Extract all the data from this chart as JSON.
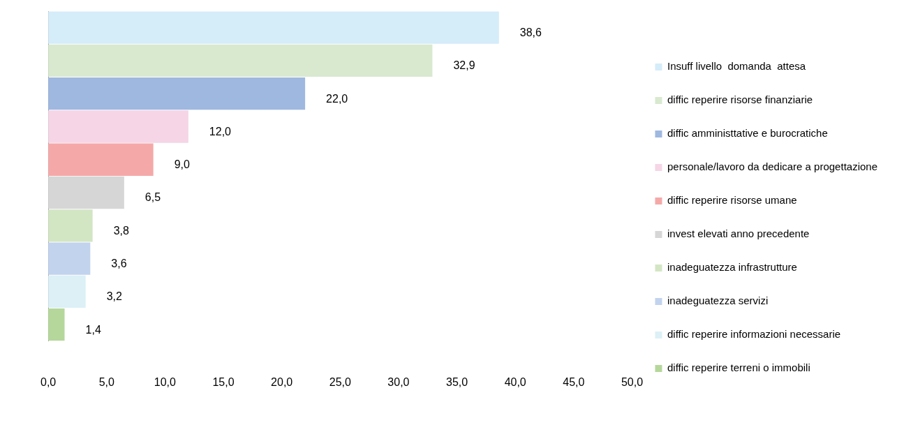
{
  "chart_data": {
    "type": "bar",
    "orientation": "horizontal",
    "categories": [
      null,
      null,
      null,
      null,
      null,
      null,
      null,
      null,
      null,
      null
    ],
    "series": [
      {
        "name": "Insuff livello  domanda  attesa",
        "color": "#d5ecf9",
        "values": [
          38.6,
          null,
          null,
          null,
          null,
          null,
          null,
          null,
          null,
          null
        ],
        "value_labels": [
          "38,6",
          null,
          null,
          null,
          null,
          null,
          null,
          null,
          null,
          null
        ]
      },
      {
        "name": "diffic reperire risorse finanziarie",
        "color": "#d8e9d0",
        "values": [
          null,
          32.9,
          null,
          null,
          null,
          null,
          null,
          null,
          null,
          null
        ],
        "value_labels": [
          null,
          "32,9",
          null,
          null,
          null,
          null,
          null,
          null,
          null,
          null
        ]
      },
      {
        "name": "diffic amministtative e burocratiche",
        "color": "#9fb8e0",
        "values": [
          null,
          null,
          22.0,
          null,
          null,
          null,
          null,
          null,
          null,
          null
        ],
        "value_labels": [
          null,
          null,
          "22,0",
          null,
          null,
          null,
          null,
          null,
          null,
          null
        ]
      },
      {
        "name": "personale/lavoro da dedicare a progettazione",
        "color": "#f5d5e6",
        "values": [
          null,
          null,
          null,
          12.0,
          null,
          null,
          null,
          null,
          null,
          null
        ],
        "value_labels": [
          null,
          null,
          null,
          "12,0",
          null,
          null,
          null,
          null,
          null,
          null
        ]
      },
      {
        "name": "diffic reperire risorse umane",
        "color": "#f4a9a8",
        "values": [
          null,
          null,
          null,
          null,
          9.0,
          null,
          null,
          null,
          null,
          null
        ],
        "value_labels": [
          null,
          null,
          null,
          null,
          "9,0",
          null,
          null,
          null,
          null,
          null
        ]
      },
      {
        "name": "invest elevati anno precedente",
        "color": "#d6d6d6",
        "values": [
          null,
          null,
          null,
          null,
          null,
          6.5,
          null,
          null,
          null,
          null
        ],
        "value_labels": [
          null,
          null,
          null,
          null,
          null,
          "6,5",
          null,
          null,
          null,
          null
        ]
      },
      {
        "name": "inadeguatezza infrastrutture",
        "color": "#d3e6c4",
        "values": [
          null,
          null,
          null,
          null,
          null,
          null,
          3.8,
          null,
          null,
          null
        ],
        "value_labels": [
          null,
          null,
          null,
          null,
          null,
          null,
          "3,8",
          null,
          null,
          null
        ]
      },
      {
        "name": "inadeguatezza servizi",
        "color": "#c2d3ee",
        "values": [
          null,
          null,
          null,
          null,
          null,
          null,
          null,
          3.6,
          null,
          null
        ],
        "value_labels": [
          null,
          null,
          null,
          null,
          null,
          null,
          null,
          "3,6",
          null,
          null
        ]
      },
      {
        "name": "diffic reperire informazioni necessarie",
        "color": "#dcf0f6",
        "values": [
          null,
          null,
          null,
          null,
          null,
          null,
          null,
          null,
          3.2,
          null
        ],
        "value_labels": [
          null,
          null,
          null,
          null,
          null,
          null,
          null,
          null,
          "3,2",
          null
        ]
      },
      {
        "name": "diffic reperire terreni o immobili",
        "color": "#b5d79b",
        "values": [
          null,
          null,
          null,
          null,
          null,
          null,
          null,
          null,
          null,
          1.4
        ],
        "value_labels": [
          null,
          null,
          null,
          null,
          null,
          null,
          null,
          null,
          null,
          "1,4"
        ]
      }
    ],
    "xlim": [
      0,
      50
    ],
    "xticks": [
      {
        "value": 0,
        "label": "0,0"
      },
      {
        "value": 5,
        "label": "5,0"
      },
      {
        "value": 10,
        "label": "10,0"
      },
      {
        "value": 15,
        "label": "15,0"
      },
      {
        "value": 20,
        "label": "20,0"
      },
      {
        "value": 25,
        "label": "25,0"
      },
      {
        "value": 30,
        "label": "30,0"
      },
      {
        "value": 35,
        "label": "35,0"
      },
      {
        "value": 40,
        "label": "40,0"
      },
      {
        "value": 45,
        "label": "45,0"
      },
      {
        "value": 50,
        "label": "50,0"
      }
    ],
    "grid": false,
    "legend": "right",
    "tick_labels": "x"
  }
}
